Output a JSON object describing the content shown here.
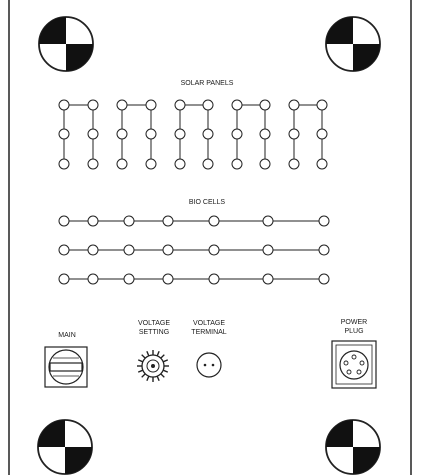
{
  "panel": {
    "solar_title": "SOLAR PANELS",
    "bio_title": "BIO CELLS",
    "main_label": "MAIN",
    "voltage_setting_line1": "VOLTAGE",
    "voltage_setting_line2": "SETTING",
    "voltage_terminal_line1": "VOLTAGE",
    "voltage_terminal_line2": "TERMINAL",
    "power_plug_line1": "POWER",
    "power_plug_line2": "PLUG"
  },
  "icons": {
    "corner_marker": "calibration-target-icon",
    "main_switch": "rotary-switch-icon",
    "voltage_knob": "rotary-knob-icon",
    "voltage_terminal": "two-pin-socket-icon",
    "power_plug": "five-pin-connector-icon"
  },
  "colors": {
    "line": "#222222",
    "node_fill": "#ffffff",
    "background": "#ffffff"
  }
}
